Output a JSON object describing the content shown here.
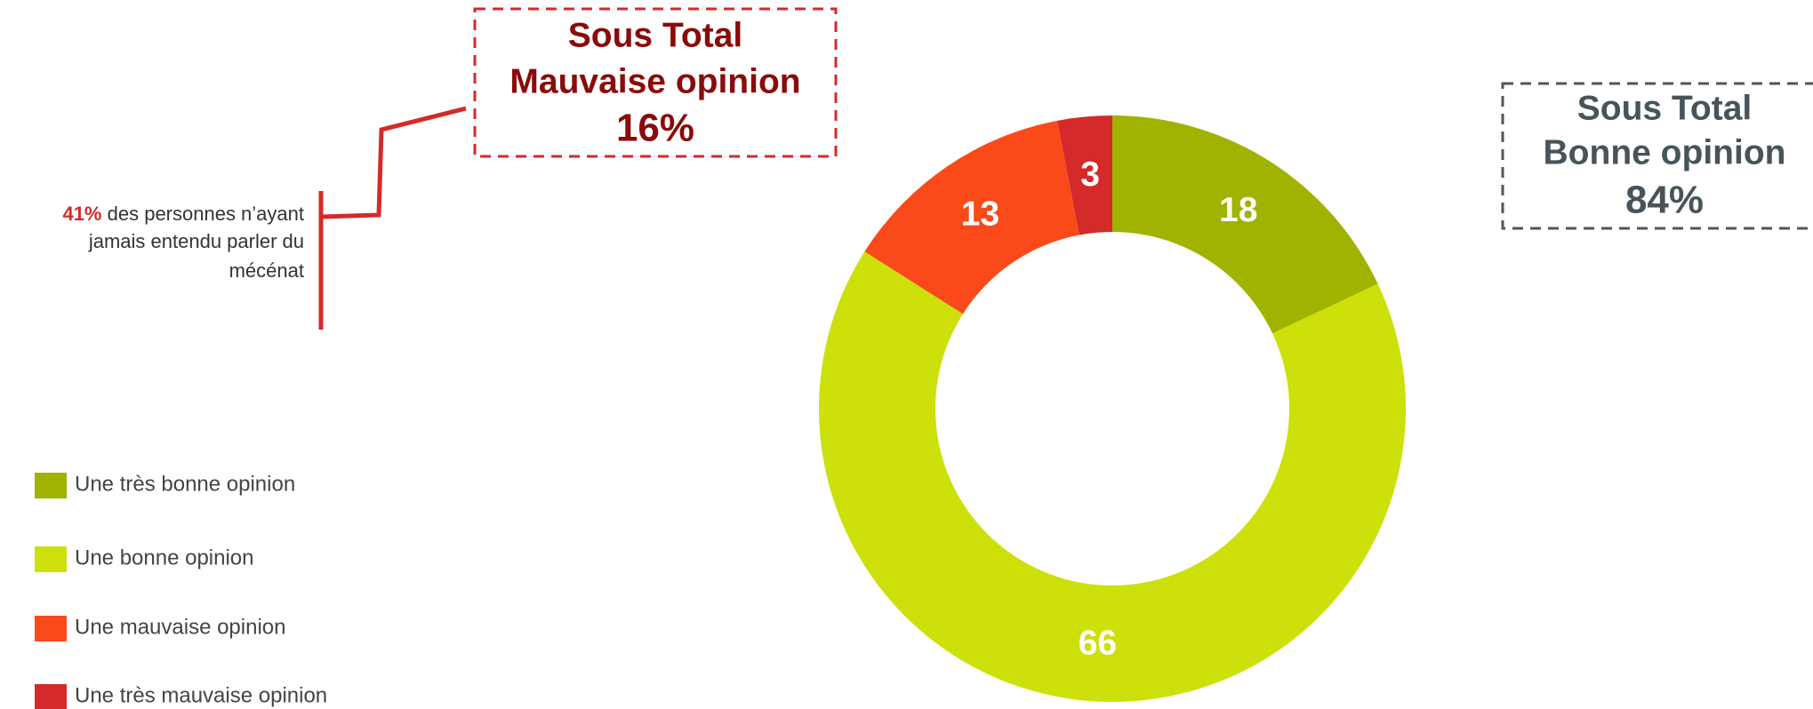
{
  "chart_data": {
    "type": "pie",
    "categories": [
      "Une très bonne opinion",
      "Une bonne opinion",
      "Une mauvaise opinion",
      "Une très mauvaise opinion"
    ],
    "values": [
      18,
      66,
      13,
      3
    ],
    "colors": [
      "#9fb300",
      "#cde00a",
      "#fb4a1a",
      "#d42a2a"
    ],
    "annotations": [
      {
        "lines": [
          "Sous Total",
          "Mauvaise opinion",
          "16%"
        ]
      },
      {
        "lines": [
          "Sous Total",
          "Bonne opinion",
          "84%"
        ]
      }
    ],
    "note": {
      "highlight": "41%",
      "lines": [
        "des personnes n’ayant",
        "jamais entendu parler du",
        "mécénat"
      ]
    }
  }
}
